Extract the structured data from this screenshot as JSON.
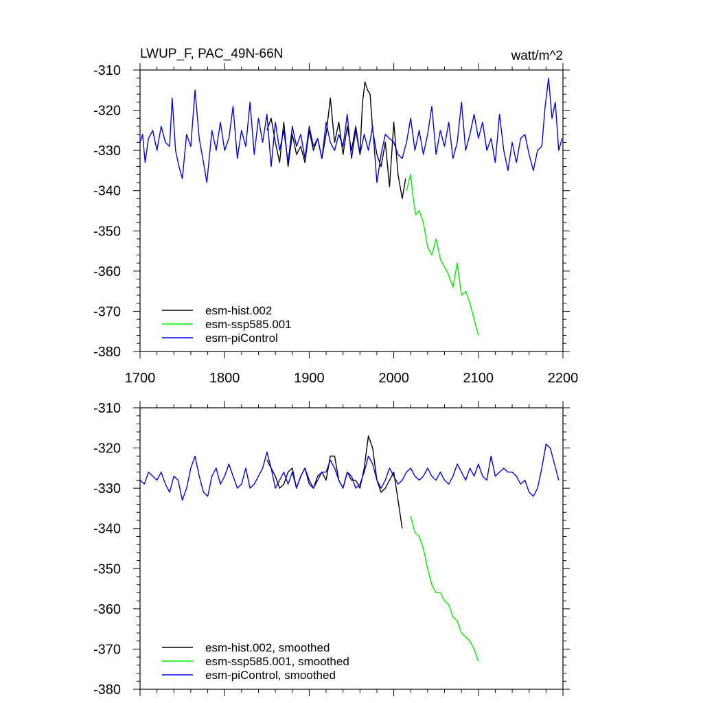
{
  "chart_data": [
    {
      "type": "line",
      "title": "LWUP_F, PAC_49N-66N",
      "units": "watt/m^2",
      "xlim": [
        1700,
        2200
      ],
      "ylim": [
        -380,
        -310
      ],
      "x_ticks": [
        1700,
        1800,
        1900,
        2000,
        2100,
        2200
      ],
      "y_ticks": [
        -310,
        -320,
        -330,
        -340,
        -350,
        -360,
        -370,
        -380
      ],
      "legend_position": "bottom-left",
      "series": [
        {
          "name": "esm-hist.002",
          "color": "#000000",
          "x": [
            1850,
            1855,
            1860,
            1865,
            1870,
            1875,
            1880,
            1885,
            1890,
            1895,
            1900,
            1905,
            1910,
            1915,
            1920,
            1925,
            1930,
            1935,
            1940,
            1945,
            1950,
            1955,
            1960,
            1963,
            1966,
            1969,
            1972,
            1975,
            1980,
            1985,
            1990,
            1995,
            2000,
            2005,
            2010,
            2014
          ],
          "y": [
            -325,
            -322,
            -328,
            -333,
            -323,
            -334,
            -326,
            -331,
            -329,
            -333,
            -325,
            -330,
            -327,
            -332,
            -326,
            -317,
            -328,
            -323,
            -331,
            -324,
            -330,
            -324,
            -331,
            -318,
            -313,
            -315,
            -316,
            -325,
            -331,
            -334,
            -328,
            -339,
            -323,
            -336,
            -342,
            -337
          ]
        },
        {
          "name": "esm-ssp585.001",
          "color": "#00ee00",
          "x": [
            2015,
            2020,
            2023,
            2026,
            2030,
            2035,
            2040,
            2045,
            2050,
            2055,
            2060,
            2065,
            2070,
            2075,
            2080,
            2085,
            2090,
            2095,
            2100
          ],
          "y": [
            -340,
            -336,
            -342,
            -346,
            -345,
            -348,
            -354,
            -356,
            -352,
            -357,
            -359,
            -361,
            -364,
            -358,
            -366,
            -365,
            -368,
            -372,
            -376
          ]
        },
        {
          "name": "esm-piControl",
          "color": "#0000ee",
          "x": [
            1700,
            1703,
            1706,
            1710,
            1715,
            1720,
            1725,
            1730,
            1735,
            1738,
            1742,
            1746,
            1750,
            1755,
            1760,
            1765,
            1770,
            1775,
            1779,
            1785,
            1790,
            1795,
            1800,
            1805,
            1810,
            1815,
            1820,
            1825,
            1830,
            1835,
            1840,
            1845,
            1850,
            1855,
            1860,
            1865,
            1870,
            1875,
            1880,
            1885,
            1890,
            1895,
            1900,
            1905,
            1910,
            1915,
            1920,
            1925,
            1930,
            1935,
            1940,
            1945,
            1950,
            1955,
            1960,
            1965,
            1970,
            1975,
            1980,
            1985,
            1990,
            1995,
            2000,
            2005,
            2010,
            2015,
            2020,
            2025,
            2030,
            2035,
            2040,
            2045,
            2050,
            2055,
            2060,
            2065,
            2070,
            2075,
            2080,
            2085,
            2090,
            2095,
            2100,
            2105,
            2110,
            2115,
            2120,
            2125,
            2130,
            2135,
            2140,
            2145,
            2150,
            2155,
            2160,
            2165,
            2170,
            2175,
            2179,
            2183,
            2187,
            2191,
            2195,
            2199
          ],
          "y": [
            -328,
            -326,
            -333,
            -327,
            -325,
            -330,
            -324,
            -328,
            -329,
            -317,
            -330,
            -334,
            -337,
            -326,
            -329,
            -315,
            -327,
            -333,
            -338,
            -325,
            -330,
            -323,
            -330,
            -327,
            -319,
            -332,
            -325,
            -329,
            -318,
            -331,
            -322,
            -328,
            -321,
            -334,
            -323,
            -330,
            -325,
            -333,
            -324,
            -329,
            -326,
            -332,
            -324,
            -329,
            -327,
            -332,
            -323,
            -328,
            -330,
            -326,
            -329,
            -321,
            -332,
            -325,
            -331,
            -326,
            -330,
            -324,
            -338,
            -331,
            -326,
            -327,
            -328,
            -331,
            -332,
            -328,
            -322,
            -330,
            -325,
            -331,
            -326,
            -319,
            -331,
            -325,
            -329,
            -323,
            -332,
            -328,
            -318,
            -330,
            -326,
            -321,
            -327,
            -323,
            -330,
            -327,
            -333,
            -321,
            -330,
            -335,
            -328,
            -333,
            -327,
            -326,
            -331,
            -335,
            -330,
            -329,
            -319,
            -312,
            -322,
            -318,
            -330,
            -327
          ]
        }
      ]
    },
    {
      "type": "line",
      "title": "",
      "xlim": [
        1700,
        2200
      ],
      "ylim": [
        -380,
        -310
      ],
      "y_ticks": [
        -310,
        -320,
        -330,
        -340,
        -350,
        -360,
        -370,
        -380
      ],
      "legend_position": "bottom-left",
      "series": [
        {
          "name": "esm-hist.002, smoothed",
          "color": "#000000",
          "x": [
            1850,
            1855,
            1860,
            1865,
            1870,
            1875,
            1880,
            1885,
            1890,
            1895,
            1900,
            1905,
            1910,
            1915,
            1920,
            1925,
            1930,
            1935,
            1940,
            1945,
            1950,
            1955,
            1960,
            1965,
            1970,
            1975,
            1980,
            1985,
            1990,
            1995,
            2000,
            2005,
            2010
          ],
          "y": [
            -323,
            -325,
            -327,
            -330,
            -329,
            -326,
            -325,
            -330,
            -327,
            -325,
            -328,
            -330,
            -327,
            -326,
            -328,
            -322,
            -322,
            -328,
            -330,
            -326,
            -328,
            -328,
            -330,
            -325,
            -317,
            -320,
            -328,
            -331,
            -330,
            -328,
            -326,
            -333,
            -340
          ]
        },
        {
          "name": "esm-ssp585.001, smoothed",
          "color": "#00ee00",
          "x": [
            2020,
            2025,
            2030,
            2035,
            2040,
            2045,
            2050,
            2055,
            2060,
            2065,
            2070,
            2075,
            2080,
            2085,
            2090,
            2095,
            2100
          ],
          "y": [
            -337,
            -341,
            -342,
            -345,
            -350,
            -354,
            -356,
            -356,
            -358,
            -359,
            -362,
            -363,
            -366,
            -367,
            -368,
            -370,
            -373
          ]
        },
        {
          "name": "esm-piControl, smoothed",
          "color": "#0000ee",
          "x": [
            1700,
            1705,
            1710,
            1715,
            1720,
            1725,
            1730,
            1735,
            1740,
            1745,
            1750,
            1755,
            1760,
            1765,
            1770,
            1775,
            1780,
            1785,
            1790,
            1795,
            1800,
            1805,
            1810,
            1815,
            1820,
            1825,
            1830,
            1835,
            1840,
            1845,
            1850,
            1855,
            1860,
            1865,
            1870,
            1875,
            1880,
            1885,
            1890,
            1895,
            1900,
            1905,
            1910,
            1915,
            1920,
            1925,
            1930,
            1935,
            1940,
            1945,
            1950,
            1955,
            1960,
            1965,
            1970,
            1975,
            1980,
            1985,
            1990,
            1995,
            2000,
            2005,
            2010,
            2015,
            2020,
            2025,
            2030,
            2035,
            2040,
            2045,
            2050,
            2055,
            2060,
            2065,
            2070,
            2075,
            2080,
            2085,
            2090,
            2095,
            2100,
            2105,
            2110,
            2115,
            2120,
            2125,
            2130,
            2135,
            2140,
            2145,
            2150,
            2155,
            2160,
            2165,
            2170,
            2175,
            2180,
            2185,
            2190,
            2195
          ],
          "y": [
            -328,
            -329,
            -326,
            -327,
            -328,
            -326,
            -329,
            -331,
            -327,
            -328,
            -333,
            -330,
            -325,
            -322,
            -327,
            -331,
            -332,
            -327,
            -325,
            -329,
            -327,
            -324,
            -327,
            -330,
            -329,
            -325,
            -330,
            -329,
            -327,
            -325,
            -321,
            -325,
            -330,
            -328,
            -326,
            -329,
            -326,
            -330,
            -327,
            -325,
            -329,
            -330,
            -328,
            -326,
            -326,
            -323,
            -325,
            -328,
            -330,
            -326,
            -327,
            -330,
            -329,
            -326,
            -322,
            -324,
            -328,
            -330,
            -328,
            -325,
            -327,
            -329,
            -328,
            -326,
            -325,
            -327,
            -328,
            -327,
            -325,
            -327,
            -328,
            -326,
            -328,
            -329,
            -327,
            -324,
            -326,
            -328,
            -325,
            -327,
            -324,
            -327,
            -328,
            -322,
            -327,
            -326,
            -325,
            -326,
            -326,
            -327,
            -329,
            -328,
            -331,
            -332,
            -330,
            -325,
            -319,
            -320,
            -324,
            -328
          ]
        }
      ]
    }
  ]
}
